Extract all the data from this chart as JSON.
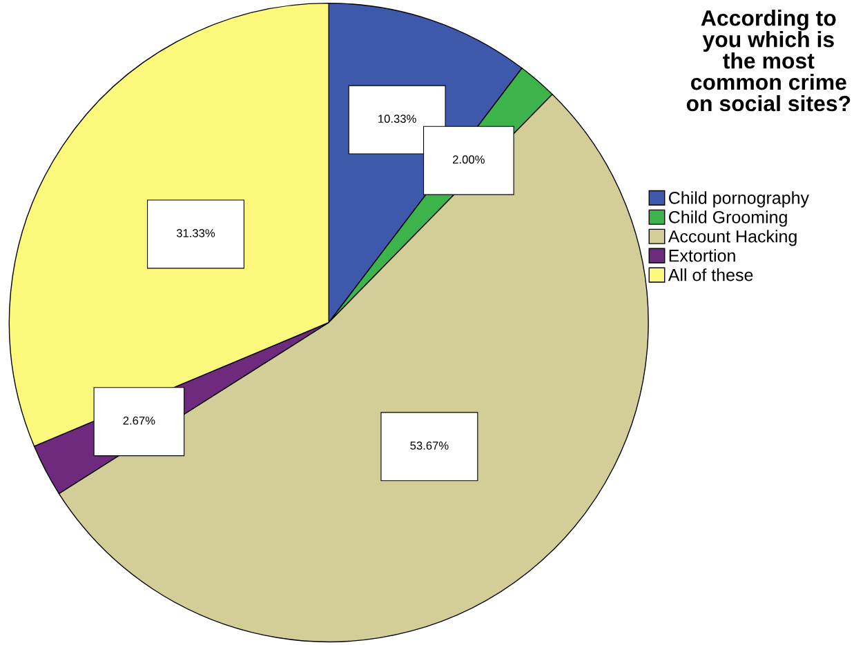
{
  "chart_data": {
    "type": "pie",
    "legend_title": "According to you which is the most common crime on social sites?",
    "categories": [
      "Child pornography",
      "Child Grooming",
      "Account Hacking",
      "Extortion",
      "All of these"
    ],
    "values": [
      10.33,
      2.0,
      53.67,
      2.67,
      31.33
    ],
    "colors": [
      "#3e58ac",
      "#3cb44b",
      "#d3ce97",
      "#6e2a7d",
      "#fbf87c"
    ],
    "value_labels": [
      "10.33%",
      "2.00%",
      "53.67%",
      "2.67%",
      "31.33%"
    ],
    "legend": "right"
  }
}
